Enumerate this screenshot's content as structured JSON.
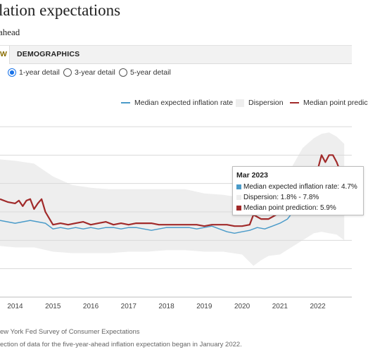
{
  "header": {
    "title": "lation expectations",
    "subtitle": "ahead"
  },
  "tabs": [
    {
      "label": "W",
      "active": true
    },
    {
      "label": "DEMOGRAPHICS",
      "active": false
    }
  ],
  "horizon_options": [
    {
      "label": "1-year detail",
      "selected": true
    },
    {
      "label": "3-year detail",
      "selected": false
    },
    {
      "label": "5-year detail",
      "selected": false
    }
  ],
  "legend": {
    "median_rate": "Median expected inflation rate",
    "dispersion": "Dispersion",
    "point_prediction": "Median point predic"
  },
  "colors": {
    "median_rate": "#4a9bc9",
    "dispersion": "#eeeeee",
    "point_prediction": "#a12a2a",
    "accent": "#1a73e8"
  },
  "tooltip": {
    "title": "Mar 2023",
    "median_rate": "Median expected inflation rate: 4.7%",
    "dispersion": "Dispersion: 1.8% - 7.8%",
    "point_prediction": "Median point prediction: 5.9%"
  },
  "chart_data": {
    "type": "line",
    "x_tick_labels": [
      "2014",
      "2015",
      "2016",
      "2017",
      "2018",
      "2019",
      "2020",
      "2021",
      "2022"
    ],
    "xlim": [
      2013.6,
      2022.9
    ],
    "ylim": [
      -2,
      10
    ],
    "grid": true,
    "series": [
      {
        "name": "Median expected inflation rate",
        "x": [
          2013.6,
          2013.8,
          2014.0,
          2014.2,
          2014.4,
          2014.6,
          2014.8,
          2015.0,
          2015.2,
          2015.4,
          2015.6,
          2015.8,
          2016.0,
          2016.2,
          2016.4,
          2016.6,
          2016.8,
          2017.0,
          2017.2,
          2017.4,
          2017.6,
          2017.8,
          2018.0,
          2018.2,
          2018.4,
          2018.6,
          2018.8,
          2019.0,
          2019.2,
          2019.4,
          2019.6,
          2019.8,
          2020.0,
          2020.2,
          2020.4,
          2020.6,
          2020.8,
          2021.0,
          2021.2,
          2021.4
        ],
        "values": [
          3.4,
          3.3,
          3.2,
          3.3,
          3.4,
          3.3,
          3.2,
          2.8,
          2.9,
          2.8,
          2.9,
          2.8,
          2.9,
          2.8,
          2.9,
          2.9,
          2.8,
          2.9,
          2.9,
          2.8,
          2.7,
          2.8,
          2.9,
          2.9,
          2.9,
          2.9,
          2.8,
          2.9,
          3.0,
          2.8,
          2.6,
          2.5,
          2.6,
          2.7,
          2.9,
          2.8,
          3.0,
          3.2,
          3.5,
          4.2
        ]
      },
      {
        "name": "Median point prediction",
        "x": [
          2013.6,
          2013.8,
          2014.0,
          2014.1,
          2014.2,
          2014.3,
          2014.4,
          2014.5,
          2014.6,
          2014.7,
          2014.8,
          2015.0,
          2015.2,
          2015.4,
          2015.6,
          2015.8,
          2016.0,
          2016.2,
          2016.4,
          2016.6,
          2016.8,
          2017.0,
          2017.2,
          2017.4,
          2017.6,
          2017.8,
          2018.0,
          2018.2,
          2018.4,
          2018.6,
          2018.8,
          2019.0,
          2019.2,
          2019.4,
          2019.6,
          2019.8,
          2020.0,
          2020.2,
          2020.3,
          2020.5,
          2020.7,
          2020.9,
          2021.1,
          2021.3,
          2021.6,
          2021.9,
          2022.0,
          2022.1,
          2022.2,
          2022.3,
          2022.4,
          2022.5,
          2022.6
        ],
        "values": [
          4.9,
          4.7,
          4.6,
          4.8,
          4.4,
          4.8,
          4.9,
          4.2,
          4.6,
          4.9,
          4.0,
          3.1,
          3.2,
          3.1,
          3.2,
          3.3,
          3.1,
          3.2,
          3.3,
          3.1,
          3.2,
          3.1,
          3.2,
          3.2,
          3.2,
          3.1,
          3.1,
          3.1,
          3.1,
          3.1,
          3.1,
          3.0,
          3.1,
          3.1,
          3.1,
          3.0,
          3.0,
          3.1,
          3.8,
          3.5,
          3.5,
          3.8,
          3.9,
          4.5,
          5.5,
          6.5,
          7.0,
          8.0,
          7.5,
          8.0,
          8.0,
          7.5,
          6.8
        ]
      }
    ],
    "dispersion_band": {
      "x": [
        2013.6,
        2014.0,
        2014.5,
        2015.0,
        2015.5,
        2016.0,
        2016.5,
        2017.0,
        2017.5,
        2018.0,
        2018.5,
        2019.0,
        2019.5,
        2020.0,
        2020.3,
        2020.5,
        2020.7,
        2021.0,
        2021.3,
        2021.6,
        2021.9,
        2022.1,
        2022.3,
        2022.5,
        2022.7
      ],
      "low": [
        1.6,
        1.5,
        1.5,
        1.2,
        1.1,
        1.1,
        1.1,
        1.2,
        1.2,
        1.3,
        1.3,
        1.2,
        1.2,
        1.0,
        0.2,
        0.6,
        0.9,
        1.0,
        1.5,
        2.0,
        2.5,
        2.6,
        2.5,
        2.4,
        2.0
      ],
      "high": [
        7.7,
        7.6,
        7.4,
        6.5,
        5.9,
        5.7,
        5.6,
        5.6,
        5.6,
        5.6,
        5.6,
        5.3,
        5.2,
        5.0,
        5.8,
        5.9,
        6.0,
        6.3,
        7.1,
        8.5,
        9.2,
        9.5,
        9.6,
        9.3,
        8.8
      ]
    }
  },
  "footer": {
    "source": "ew York Fed Survey of Consumer Expectations",
    "note": "ection of data for the five-year-ahead inflation expectation began in January 2022."
  }
}
